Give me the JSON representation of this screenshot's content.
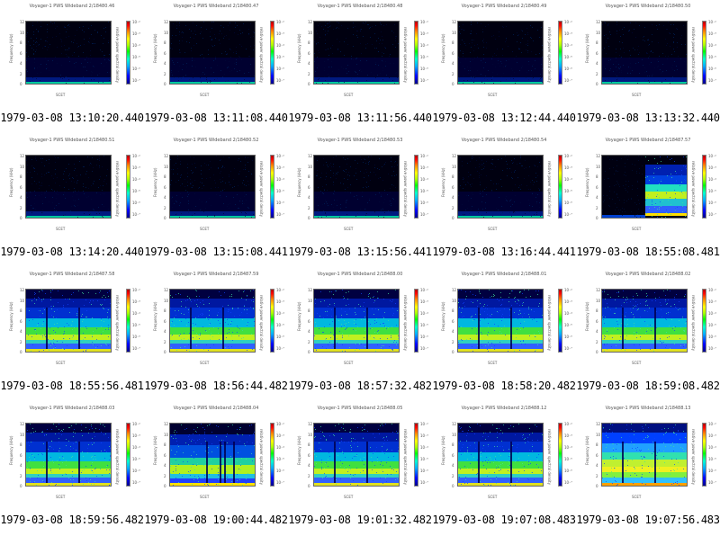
{
  "plot_header": "Voyager-1  PWS  Wideband",
  "y_axis_label": "Frequency (kHz)",
  "colorbar_label": "relative power spectral density",
  "footer_label": "SCET",
  "panels": [
    {
      "title": "Voyager-1 PWS Wideband 2/18480.46",
      "caption": "1979-03-08 13:10:20.440",
      "kind": "quiet"
    },
    {
      "title": "Voyager-1 PWS Wideband 2/18480.47",
      "caption": "1979-03-08 13:11:08.440",
      "kind": "quiet"
    },
    {
      "title": "Voyager-1 PWS Wideband 2/18480.48",
      "caption": "1979-03-08 13:11:56.440",
      "kind": "quiet"
    },
    {
      "title": "Voyager-1 PWS Wideband 2/18480.49",
      "caption": "1979-03-08 13:12:44.440",
      "kind": "quiet"
    },
    {
      "title": "Voyager-1 PWS Wideband 2/18480.50",
      "caption": "1979-03-08 13:13:32.440",
      "kind": "quiet"
    },
    {
      "title": "Voyager-1 PWS Wideband 2/18480.51",
      "caption": "1979-03-08 13:14:20.440",
      "kind": "quiet"
    },
    {
      "title": "Voyager-1 PWS Wideband 2/18480.52",
      "caption": "1979-03-08 13:15:08.441",
      "kind": "quiet"
    },
    {
      "title": "Voyager-1 PWS Wideband 2/18480.53",
      "caption": "1979-03-08 13:15:56.441",
      "kind": "quiet"
    },
    {
      "title": "Voyager-1 PWS Wideband 2/18480.54",
      "caption": "1979-03-08 13:16:44.441",
      "kind": "quiet"
    },
    {
      "title": "Voyager-1 PWS Wideband 2/18487.57",
      "caption": "1979-03-08 18:55:08.481",
      "kind": "onset"
    },
    {
      "title": "Voyager-1 PWS Wideband 2/18487.58",
      "caption": "1979-03-08 18:55:56.481",
      "kind": "active"
    },
    {
      "title": "Voyager-1 PWS Wideband 2/18487.59",
      "caption": "1979-03-08 18:56:44.482",
      "kind": "active"
    },
    {
      "title": "Voyager-1 PWS Wideband 2/18488.00",
      "caption": "1979-03-08 18:57:32.482",
      "kind": "active"
    },
    {
      "title": "Voyager-1 PWS Wideband 2/18488.01",
      "caption": "1979-03-08 18:58:20.482",
      "kind": "active"
    },
    {
      "title": "Voyager-1 PWS Wideband 2/18488.02",
      "caption": "1979-03-08 18:59:08.482",
      "kind": "active"
    },
    {
      "title": "Voyager-1 PWS Wideband 2/18488.03",
      "caption": "1979-03-08 18:59:56.482",
      "kind": "active"
    },
    {
      "title": "Voyager-1 PWS Wideband 2/18488.04",
      "caption": "1979-03-08 19:00:44.482",
      "kind": "busy"
    },
    {
      "title": "Voyager-1 PWS Wideband 2/18488.05",
      "caption": "1979-03-08 19:01:32.482",
      "kind": "active"
    },
    {
      "title": "Voyager-1 PWS Wideband 2/18488.12",
      "caption": "1979-03-08 19:07:08.483",
      "kind": "active"
    },
    {
      "title": "Voyager-1 PWS Wideband 2/18488.13",
      "caption": "1979-03-08 19:07:56.483",
      "kind": "strong"
    }
  ],
  "y_ticks": [
    "12",
    "10",
    "8",
    "6",
    "4",
    "2",
    "0"
  ],
  "cb_ticks": [
    "10⁻²",
    "10⁻³",
    "10⁻⁴",
    "10⁻⁵",
    "10⁻⁶",
    "10⁻⁷"
  ]
}
